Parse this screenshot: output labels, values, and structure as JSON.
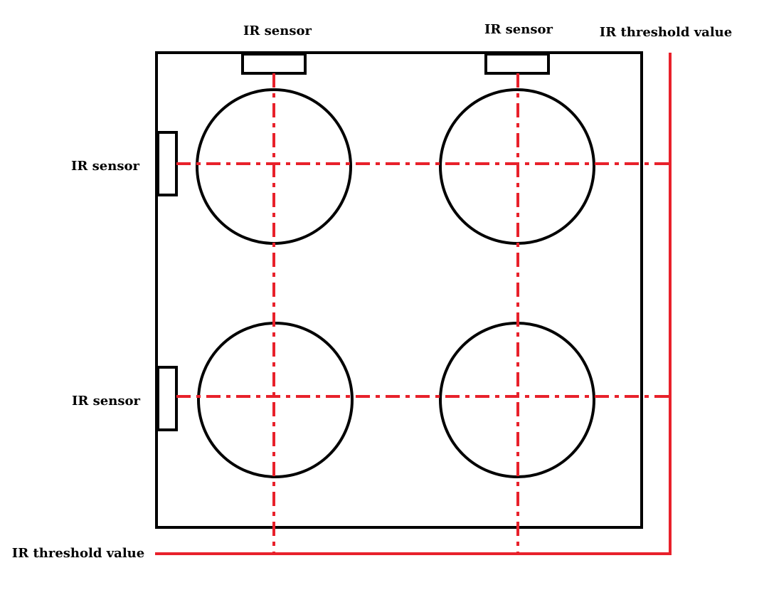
{
  "labels": {
    "sensor_top_left": "IR sensor",
    "sensor_top_right": "IR sensor",
    "sensor_left_upper": "IR sensor",
    "sensor_left_lower": "IR sensor",
    "threshold_right": "IR threshold value",
    "threshold_bottom": "IR threshold value"
  },
  "colors": {
    "outline": "#000000",
    "beam": "#e8212b",
    "background": "#ffffff"
  }
}
